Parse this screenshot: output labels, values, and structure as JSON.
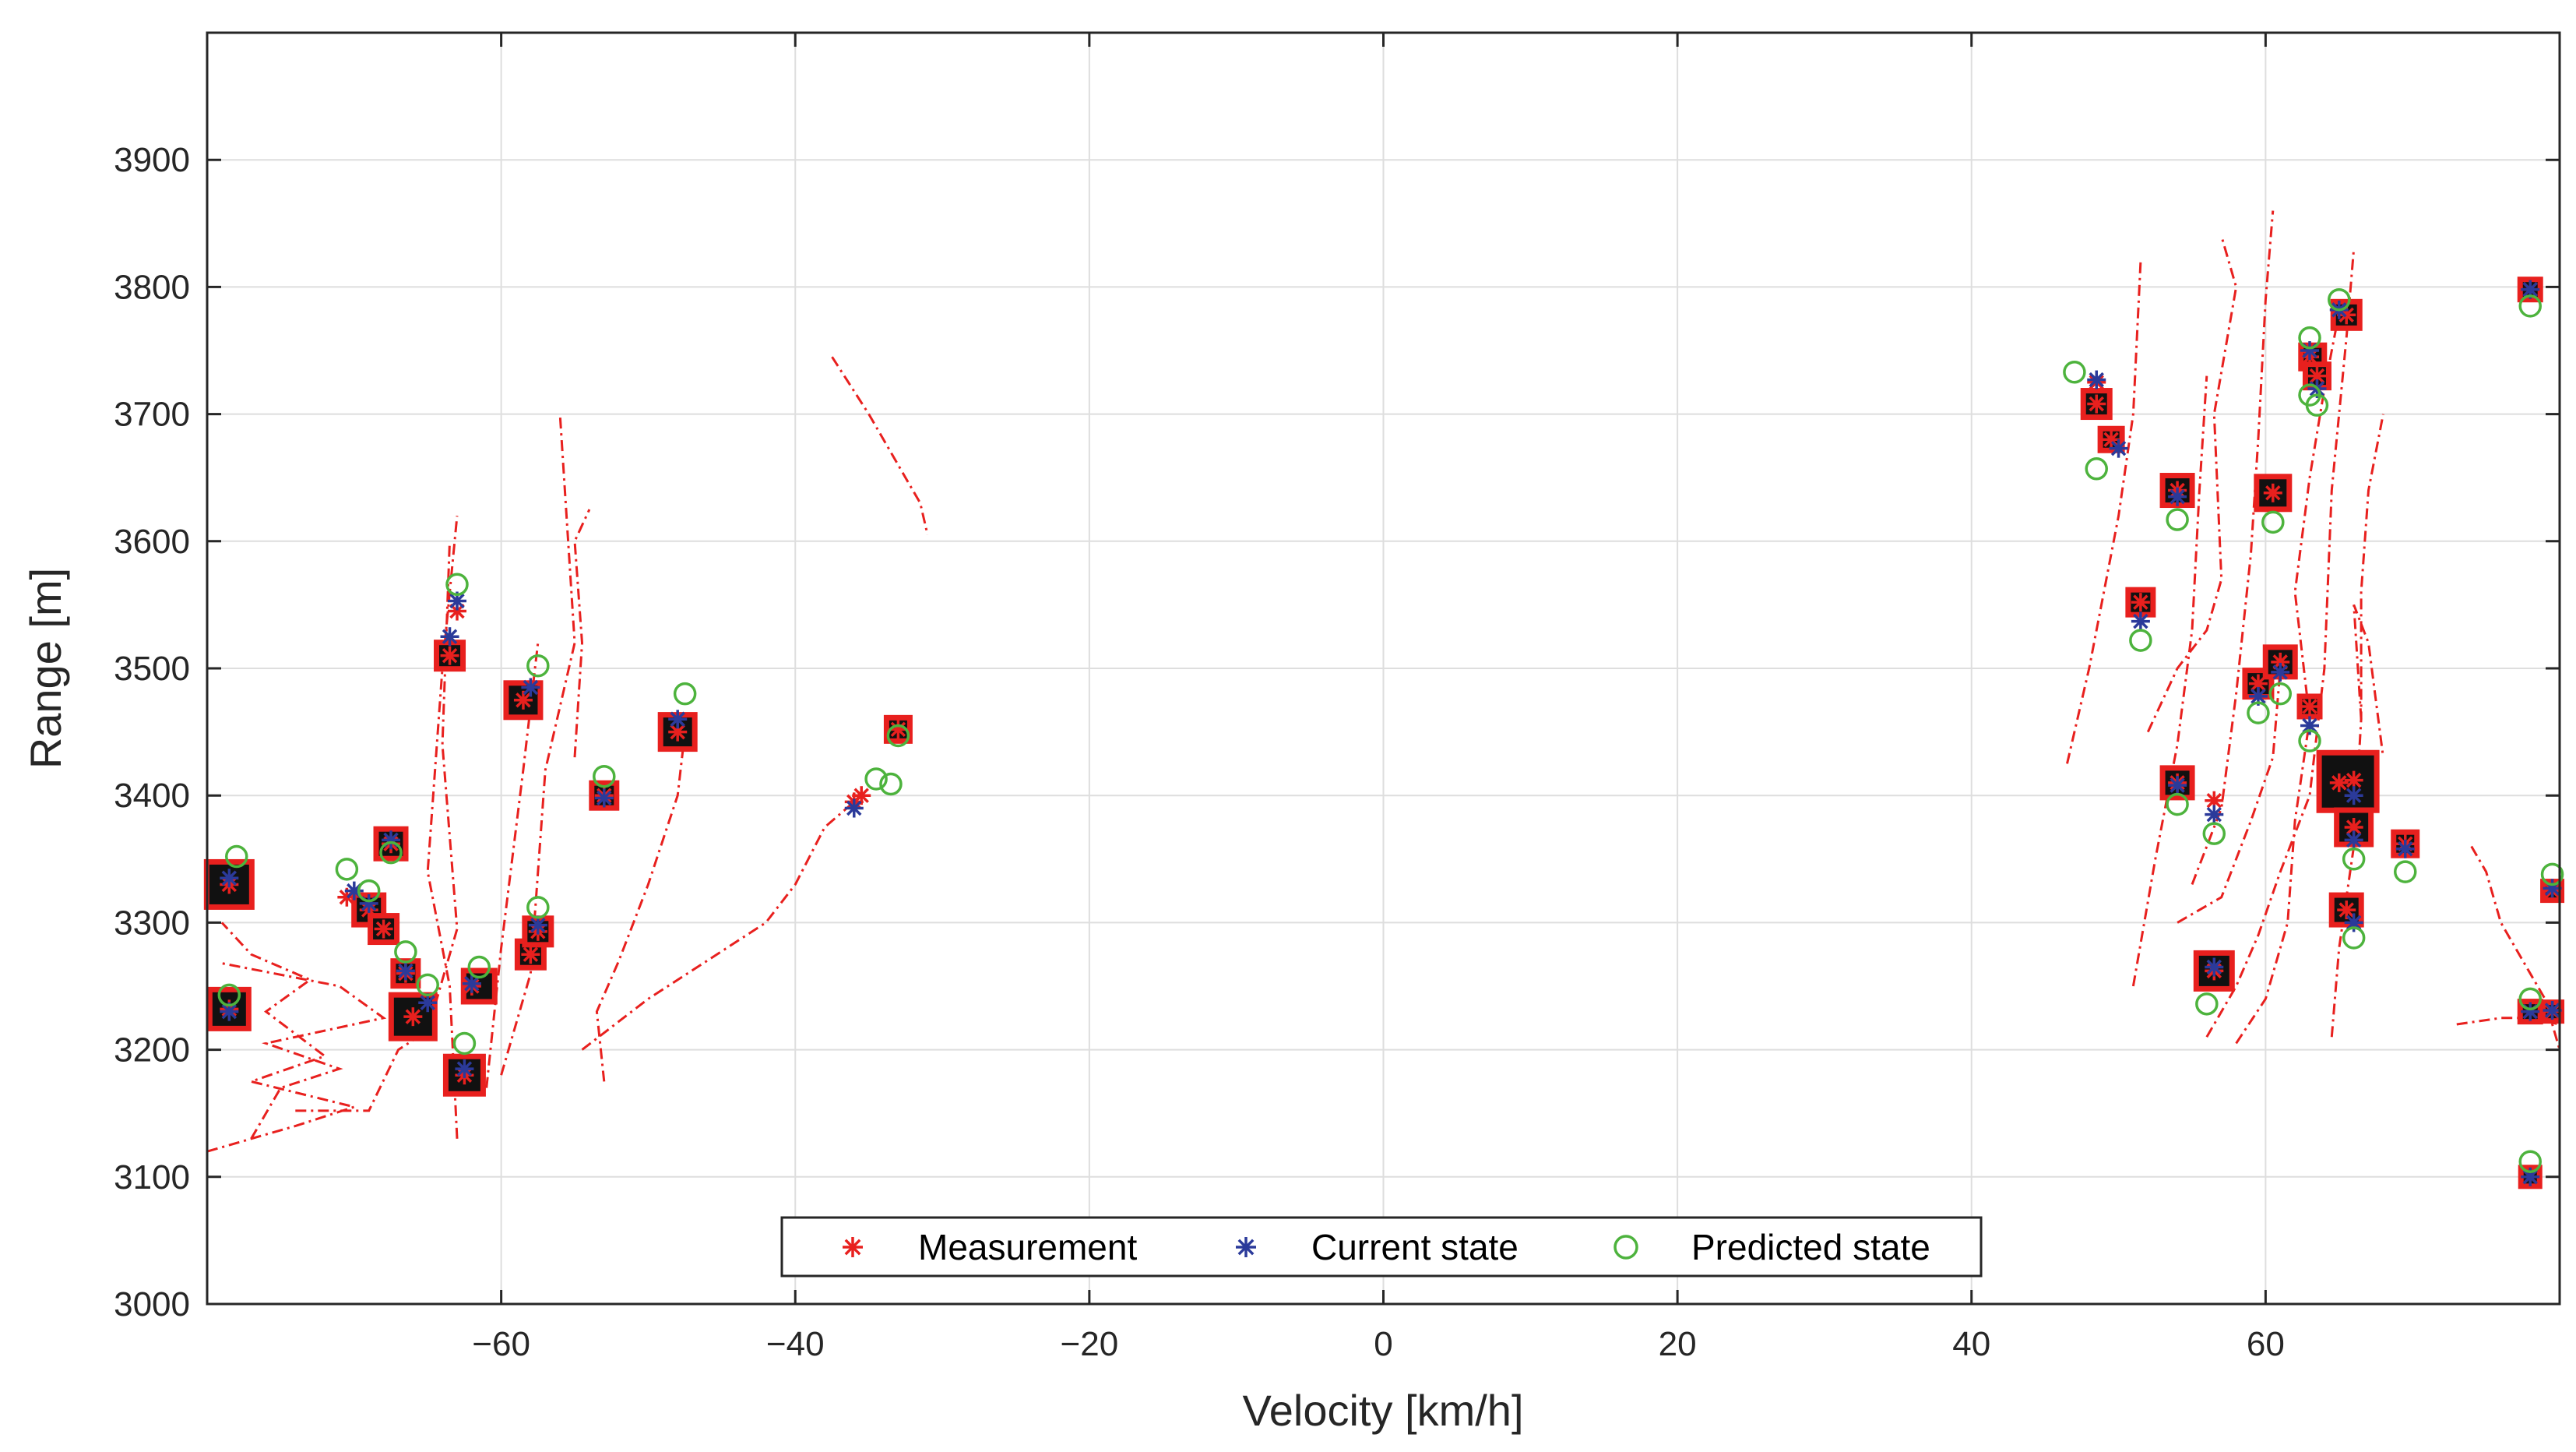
{
  "chart_data": {
    "type": "scatter",
    "title": "",
    "xlabel": "Velocity [km/h]",
    "ylabel": "Range [m]",
    "xlim": [
      -80,
      80
    ],
    "ylim": [
      3000,
      4000
    ],
    "xticks": [
      -60,
      -40,
      -20,
      0,
      20,
      40,
      60
    ],
    "xtick_labels": [
      "−60",
      "−40",
      "−20",
      "0",
      "20",
      "40",
      "60"
    ],
    "yticks": [
      3000,
      3100,
      3200,
      3300,
      3400,
      3500,
      3600,
      3700,
      3800,
      3900
    ],
    "ytick_labels": [
      "3000",
      "3100",
      "3200",
      "3300",
      "3400",
      "3500",
      "3600",
      "3700",
      "3800",
      "3900"
    ],
    "grid": true,
    "legend_location": "bottom-center",
    "legend": [
      {
        "name": "Measurement",
        "marker": "asterisk",
        "color": "#e8201e"
      },
      {
        "name": "Current state",
        "marker": "asterisk",
        "color": "#2b3a9a"
      },
      {
        "name": "Predicted state",
        "marker": "circle",
        "color": "#4db33d"
      }
    ],
    "series": [
      {
        "name": "Measurement",
        "color": "#e8201e",
        "points": [
          [
            -78.5,
            3330
          ],
          [
            -78.5,
            3232
          ],
          [
            -70.5,
            3320
          ],
          [
            -69,
            3310
          ],
          [
            -68,
            3295
          ],
          [
            -67.5,
            3362
          ],
          [
            -66.5,
            3260
          ],
          [
            -66,
            3226
          ],
          [
            -63.5,
            3510
          ],
          [
            -63,
            3545
          ],
          [
            -62.5,
            3180
          ],
          [
            -62,
            3250
          ],
          [
            -58.5,
            3475
          ],
          [
            -58,
            3275
          ],
          [
            -57.5,
            3293
          ],
          [
            -53,
            3400
          ],
          [
            -48,
            3450
          ],
          [
            -36,
            3395
          ],
          [
            -35.5,
            3400
          ],
          [
            -33,
            3452
          ],
          [
            48.5,
            3725
          ],
          [
            48.5,
            3708
          ],
          [
            49.5,
            3680
          ],
          [
            51.5,
            3552
          ],
          [
            54,
            3640
          ],
          [
            54,
            3410
          ],
          [
            56.5,
            3396
          ],
          [
            56.5,
            3262
          ],
          [
            59.5,
            3488
          ],
          [
            60.5,
            3638
          ],
          [
            61,
            3505
          ],
          [
            63,
            3470
          ],
          [
            63,
            3745
          ],
          [
            63.5,
            3730
          ],
          [
            65.5,
            3778
          ],
          [
            65,
            3410
          ],
          [
            66,
            3412
          ],
          [
            66,
            3375
          ],
          [
            65.5,
            3310
          ],
          [
            69.5,
            3362
          ],
          [
            78,
            3798
          ],
          [
            78,
            3230
          ],
          [
            78,
            3100
          ],
          [
            79.5,
            3325
          ],
          [
            79.5,
            3230
          ]
        ]
      },
      {
        "name": "Current state",
        "color": "#2b3a9a",
        "points": [
          [
            -78.5,
            3335
          ],
          [
            -78.5,
            3230
          ],
          [
            -70,
            3325
          ],
          [
            -69,
            3315
          ],
          [
            -67.5,
            3365
          ],
          [
            -66.5,
            3262
          ],
          [
            -65,
            3237
          ],
          [
            -63.5,
            3525
          ],
          [
            -63,
            3553
          ],
          [
            -62.5,
            3185
          ],
          [
            -62,
            3252
          ],
          [
            -58,
            3485
          ],
          [
            -57.5,
            3298
          ],
          [
            -53,
            3398
          ],
          [
            -48,
            3460
          ],
          [
            -36,
            3390
          ],
          [
            48.5,
            3727
          ],
          [
            50,
            3673
          ],
          [
            51.5,
            3537
          ],
          [
            54,
            3635
          ],
          [
            54,
            3408
          ],
          [
            56.5,
            3385
          ],
          [
            56.5,
            3265
          ],
          [
            59.5,
            3478
          ],
          [
            61,
            3497
          ],
          [
            63,
            3455
          ],
          [
            63,
            3750
          ],
          [
            63.5,
            3720
          ],
          [
            65,
            3782
          ],
          [
            66,
            3400
          ],
          [
            66,
            3365
          ],
          [
            66,
            3300
          ],
          [
            69.5,
            3358
          ],
          [
            78,
            3798
          ],
          [
            78,
            3230
          ],
          [
            78,
            3100
          ],
          [
            79.5,
            3327
          ],
          [
            79.5,
            3231
          ]
        ]
      },
      {
        "name": "Predicted state",
        "color": "#4db33d",
        "points": [
          [
            -78,
            3352
          ],
          [
            -78.5,
            3243
          ],
          [
            -70.5,
            3342
          ],
          [
            -69,
            3325
          ],
          [
            -67.5,
            3355
          ],
          [
            -66.5,
            3277
          ],
          [
            -65,
            3251
          ],
          [
            -63,
            3566
          ],
          [
            -62.5,
            3205
          ],
          [
            -61.5,
            3265
          ],
          [
            -57.5,
            3502
          ],
          [
            -57.5,
            3312
          ],
          [
            -53,
            3415
          ],
          [
            -47.5,
            3480
          ],
          [
            -34.5,
            3413
          ],
          [
            -33.5,
            3409
          ],
          [
            -33,
            3447
          ],
          [
            47,
            3733
          ],
          [
            48.5,
            3657
          ],
          [
            51.5,
            3522
          ],
          [
            54,
            3617
          ],
          [
            54,
            3393
          ],
          [
            56,
            3236
          ],
          [
            56.5,
            3370
          ],
          [
            59.5,
            3465
          ],
          [
            60.5,
            3615
          ],
          [
            61,
            3480
          ],
          [
            63,
            3443
          ],
          [
            63,
            3715
          ],
          [
            63,
            3760
          ],
          [
            63.5,
            3707
          ],
          [
            65,
            3790
          ],
          [
            66,
            3350
          ],
          [
            66,
            3288
          ],
          [
            69.5,
            3340
          ],
          [
            78,
            3785
          ],
          [
            78,
            3240
          ],
          [
            78,
            3112
          ],
          [
            79.5,
            3338
          ]
        ]
      }
    ]
  }
}
